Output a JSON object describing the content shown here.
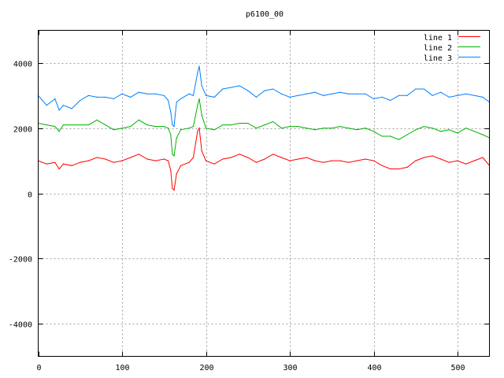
{
  "chart_data": {
    "type": "line",
    "title": "p6100_00",
    "xlabel": "",
    "ylabel": "",
    "xlim": [
      0,
      538
    ],
    "ylim": [
      -5000,
      5000
    ],
    "xticks": [
      0,
      100,
      200,
      300,
      400,
      500
    ],
    "yticks": [
      -4000,
      -2000,
      0,
      2000,
      4000
    ],
    "grid": true,
    "legend_position": "top-right",
    "x": [
      0,
      10,
      20,
      25,
      30,
      40,
      50,
      60,
      70,
      80,
      90,
      100,
      110,
      120,
      130,
      140,
      150,
      155,
      158,
      160,
      162,
      165,
      170,
      180,
      185,
      190,
      192,
      195,
      200,
      210,
      220,
      230,
      240,
      250,
      260,
      270,
      280,
      290,
      300,
      310,
      320,
      330,
      340,
      350,
      360,
      370,
      380,
      390,
      400,
      410,
      420,
      430,
      440,
      450,
      460,
      470,
      480,
      490,
      500,
      510,
      520,
      530,
      538
    ],
    "series": [
      {
        "name": "line 1",
        "color": "#ff0000",
        "values": [
          1000,
          900,
          950,
          750,
          900,
          850,
          950,
          1000,
          1100,
          1050,
          950,
          1000,
          1100,
          1200,
          1050,
          1000,
          1050,
          1000,
          700,
          150,
          100,
          600,
          850,
          950,
          1100,
          1900,
          2000,
          1300,
          1000,
          900,
          1050,
          1100,
          1200,
          1100,
          950,
          1050,
          1200,
          1100,
          1000,
          1050,
          1100,
          1000,
          950,
          1000,
          1000,
          950,
          1000,
          1050,
          1000,
          850,
          750,
          750,
          800,
          1000,
          1100,
          1150,
          1050,
          950,
          1000,
          900,
          1000,
          1100,
          850
        ]
      },
      {
        "name": "line 2",
        "color": "#00b000",
        "values": [
          2150,
          2100,
          2050,
          1900,
          2100,
          2100,
          2100,
          2100,
          2250,
          2100,
          1950,
          2000,
          2050,
          2250,
          2100,
          2050,
          2050,
          2000,
          1800,
          1200,
          1150,
          1700,
          1950,
          2000,
          2050,
          2700,
          2900,
          2400,
          2000,
          1950,
          2100,
          2100,
          2150,
          2150,
          2000,
          2100,
          2200,
          2000,
          2050,
          2050,
          2000,
          1950,
          2000,
          2000,
          2050,
          2000,
          1950,
          2000,
          1900,
          1750,
          1750,
          1650,
          1800,
          1950,
          2050,
          2000,
          1900,
          1950,
          1850,
          2000,
          1900,
          1800,
          1700
        ]
      },
      {
        "name": "line 3",
        "color": "#0080ff",
        "values": [
          3000,
          2700,
          2900,
          2550,
          2700,
          2600,
          2850,
          3000,
          2950,
          2950,
          2900,
          3050,
          2950,
          3100,
          3050,
          3050,
          3000,
          2850,
          2500,
          2100,
          2050,
          2800,
          2900,
          3050,
          3000,
          3700,
          3900,
          3300,
          3000,
          2950,
          3200,
          3250,
          3300,
          3150,
          2950,
          3150,
          3200,
          3050,
          2950,
          3000,
          3050,
          3100,
          3000,
          3050,
          3100,
          3050,
          3050,
          3050,
          2900,
          2950,
          2850,
          3000,
          3000,
          3200,
          3200,
          3000,
          3100,
          2950,
          3000,
          3050,
          3000,
          2950,
          2800
        ]
      }
    ]
  }
}
